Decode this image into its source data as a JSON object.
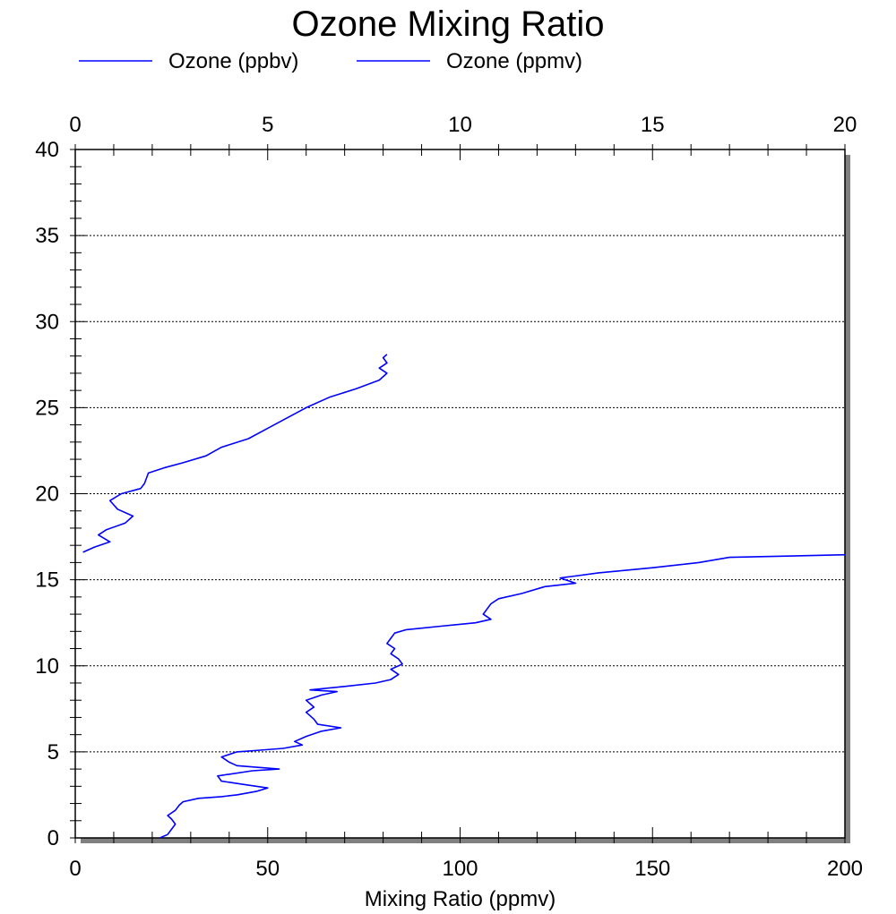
{
  "chart_data": {
    "type": "line",
    "title": "Ozone Mixing Ratio",
    "xlabel": "Mixing Ratio (ppmv)",
    "xlabel_top": "",
    "ylabel": "",
    "bottom_axis": {
      "lim": [
        0,
        200
      ],
      "major_ticks": [
        0,
        50,
        100,
        150,
        200
      ],
      "tick_labels": [
        "0",
        "50",
        "100",
        "150",
        "200"
      ],
      "minor_step": 10
    },
    "top_axis": {
      "lim": [
        0,
        20
      ],
      "major_ticks": [
        0,
        5,
        10,
        15,
        20
      ],
      "tick_labels": [
        "0",
        "5",
        "10",
        "15",
        "20"
      ],
      "minor_step": 1
    },
    "y_axis": {
      "lim": [
        0,
        40
      ],
      "major_ticks": [
        0,
        5,
        10,
        15,
        20,
        25,
        30,
        35,
        40
      ],
      "tick_labels": [
        "0",
        "5",
        "10",
        "15",
        "20",
        "25",
        "30",
        "35",
        "40"
      ],
      "minor_step": 1
    },
    "grid": "horizontal-dotted",
    "legend": {
      "placement": "top-left"
    },
    "colors": {
      "series": "#0000ff",
      "shadow": "#808080",
      "grid": "#000000",
      "axes": "#000000"
    },
    "series": [
      {
        "name": "Ozone (ppbv)",
        "axis": "bottom",
        "points": [
          [
            22,
            0.0
          ],
          [
            24,
            0.2
          ],
          [
            25,
            0.5
          ],
          [
            26,
            0.8
          ],
          [
            25,
            1.1
          ],
          [
            24,
            1.3
          ],
          [
            26,
            1.6
          ],
          [
            27,
            1.9
          ],
          [
            28,
            2.1
          ],
          [
            32,
            2.3
          ],
          [
            38,
            2.4
          ],
          [
            42,
            2.5
          ],
          [
            47,
            2.7
          ],
          [
            50,
            2.9
          ],
          [
            44,
            3.1
          ],
          [
            38,
            3.3
          ],
          [
            37,
            3.6
          ],
          [
            46,
            3.9
          ],
          [
            53,
            4.0
          ],
          [
            42,
            4.2
          ],
          [
            40,
            4.4
          ],
          [
            38,
            4.7
          ],
          [
            42,
            5.0
          ],
          [
            48,
            5.1
          ],
          [
            54,
            5.2
          ],
          [
            59,
            5.4
          ],
          [
            57,
            5.6
          ],
          [
            60,
            5.9
          ],
          [
            64,
            6.2
          ],
          [
            69,
            6.4
          ],
          [
            63,
            6.6
          ],
          [
            62,
            6.9
          ],
          [
            60,
            7.3
          ],
          [
            62,
            7.6
          ],
          [
            60,
            8.0
          ],
          [
            64,
            8.3
          ],
          [
            68,
            8.5
          ],
          [
            61,
            8.6
          ],
          [
            70,
            8.8
          ],
          [
            78,
            9.0
          ],
          [
            82,
            9.2
          ],
          [
            84,
            9.5
          ],
          [
            82,
            9.8
          ],
          [
            85,
            10.1
          ],
          [
            84,
            10.4
          ],
          [
            82,
            10.7
          ],
          [
            83,
            11.0
          ],
          [
            81,
            11.3
          ],
          [
            82,
            11.6
          ],
          [
            83,
            11.9
          ],
          [
            86,
            12.1
          ],
          [
            95,
            12.3
          ],
          [
            104,
            12.5
          ],
          [
            108,
            12.7
          ],
          [
            106,
            13.0
          ],
          [
            107,
            13.3
          ],
          [
            108,
            13.6
          ],
          [
            110,
            13.9
          ],
          [
            116,
            14.2
          ],
          [
            122,
            14.6
          ],
          [
            130,
            14.8
          ],
          [
            126,
            15.1
          ],
          [
            136,
            15.4
          ],
          [
            150,
            15.7
          ],
          [
            162,
            16.0
          ],
          [
            170,
            16.3
          ],
          [
            200,
            16.45
          ]
        ]
      },
      {
        "name": "Ozone (ppmv)",
        "axis": "top",
        "points": [
          [
            0.2,
            16.6
          ],
          [
            0.5,
            16.9
          ],
          [
            0.9,
            17.2
          ],
          [
            0.6,
            17.6
          ],
          [
            0.8,
            17.9
          ],
          [
            1.3,
            18.3
          ],
          [
            1.5,
            18.7
          ],
          [
            1.1,
            19.1
          ],
          [
            0.9,
            19.6
          ],
          [
            1.2,
            20.0
          ],
          [
            1.7,
            20.3
          ],
          [
            1.8,
            20.6
          ],
          [
            1.9,
            21.2
          ],
          [
            2.3,
            21.5
          ],
          [
            2.8,
            21.8
          ],
          [
            3.4,
            22.2
          ],
          [
            3.8,
            22.7
          ],
          [
            4.5,
            23.2
          ],
          [
            5.0,
            23.8
          ],
          [
            5.5,
            24.4
          ],
          [
            6.0,
            25.0
          ],
          [
            6.6,
            25.6
          ],
          [
            7.3,
            26.1
          ],
          [
            7.9,
            26.6
          ],
          [
            8.1,
            27.0
          ],
          [
            7.9,
            27.3
          ],
          [
            8.1,
            27.6
          ],
          [
            8.0,
            27.9
          ],
          [
            8.1,
            28.1
          ]
        ]
      }
    ]
  }
}
